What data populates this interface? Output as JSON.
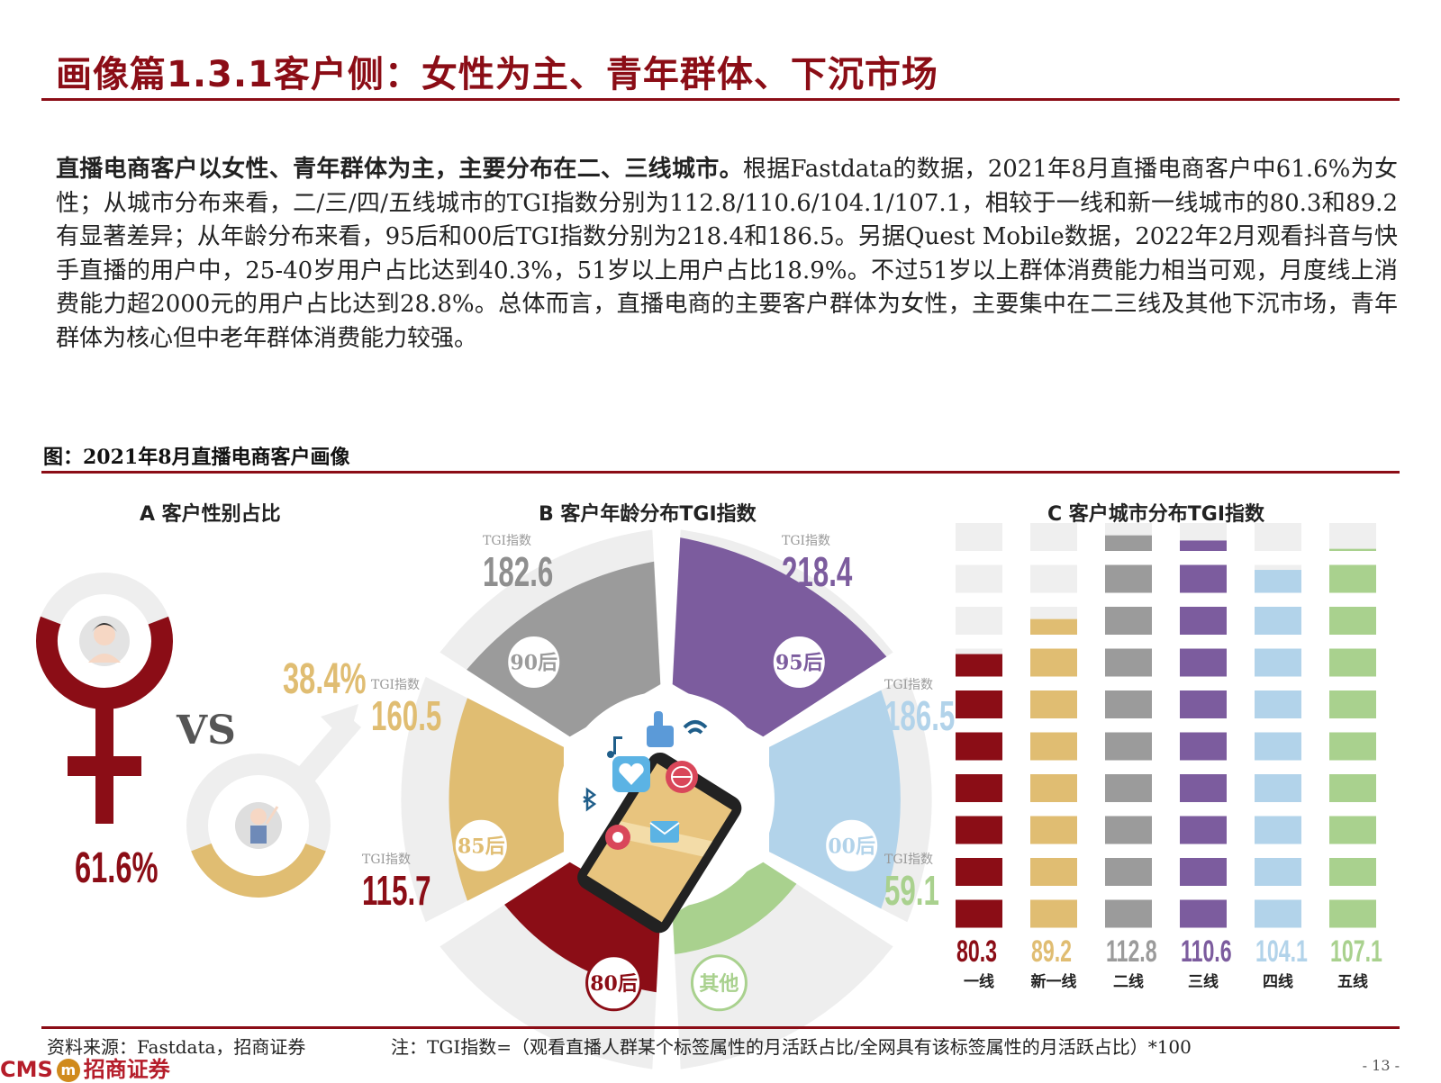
{
  "header": {
    "title": "画像篇1.3.1客户侧：女性为主、青年群体、下沉市场"
  },
  "body": {
    "lead": "直播电商客户以女性、青年群体为主，主要分布在二、三线城市。",
    "text": "根据Fastdata的数据，2021年8月直播电商客户中61.6%为女性；从城市分布来看，二/三/四/五线城市的TGI指数分别为112.8/110.6/104.1/107.1，相较于一线和新一线城市的80.3和89.2有显著差异；从年龄分布来看，95后和00后TGI指数分别为218.4和186.5。另据Quest Mobile数据，2022年2月观看抖音与快手直播的用户中，25-40岁用户占比达到40.3%，51岁以上用户占比18.9%。不过51岁以上群体消费能力相当可观，月度线上消费能力超2000元的用户占比达到28.8%。总体而言，直播电商的主要客户群体为女性，主要集中在二三线及其他下沉市场，青年群体为核心但中老年群体消费能力较强。"
  },
  "figure": {
    "title": "图：2021年8月直播电商客户画像"
  },
  "chart_data": [
    {
      "type": "pie",
      "title": "A 客户性别占比",
      "categories": [
        "女",
        "男"
      ],
      "values": [
        61.6,
        38.4
      ],
      "labels": [
        "61.6%",
        "38.4%"
      ],
      "vs_label": "VS",
      "colors": [
        "#8b0d16",
        "#e0bd72"
      ]
    },
    {
      "type": "bar",
      "title": "B 客户年龄分布TGI指数",
      "tgi_label": "TGI指数",
      "categories": [
        "90后",
        "95后",
        "85后",
        "00后",
        "80后",
        "其他"
      ],
      "values": [
        182.6,
        218.4,
        160.5,
        186.5,
        115.7,
        59.1
      ],
      "colors": [
        "#9b9b9b",
        "#7c5c9e",
        "#e0bd72",
        "#b2d3ea",
        "#8b0d16",
        "#a9d18e"
      ]
    },
    {
      "type": "bar",
      "title": "C 客户城市分布TGI指数",
      "categories": [
        "一线",
        "新一线",
        "二线",
        "三线",
        "四线",
        "五线"
      ],
      "values": [
        80.3,
        89.2,
        112.8,
        110.6,
        104.1,
        107.1
      ],
      "colors": [
        "#8b0d16",
        "#e0bd72",
        "#9b9b9b",
        "#7c5c9e",
        "#b2d3ea",
        "#a9d18e"
      ],
      "scale_max": 118
    }
  ],
  "footer": {
    "source": "资料来源：Fastdata，招商证券",
    "note": "注：TGI指数=（观看直播人群某个标签属性的月活跃占比/全网具有该标签属性的月活跃占比）*100",
    "logo_text_en": "CMS",
    "logo_mark": "m",
    "logo_text_cn": "招商证券",
    "page": "- 13 -"
  }
}
